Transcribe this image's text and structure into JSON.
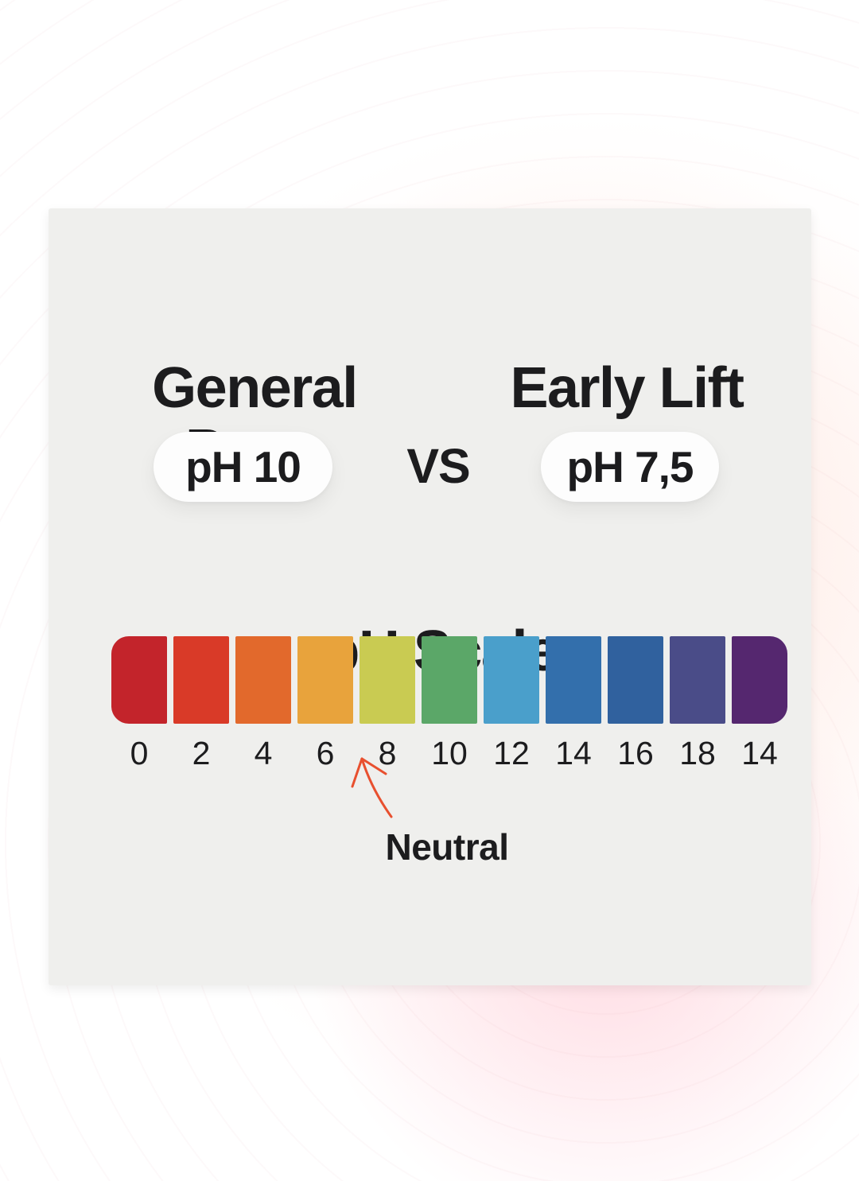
{
  "comparison": {
    "left_title": "General Perm",
    "left_ph": "pH 10",
    "vs_label": "VS",
    "right_title": "Early Lift",
    "right_ph": "pH 7,5"
  },
  "ph_scale": {
    "title": "pH Scale",
    "blocks": [
      {
        "label": "0",
        "color": "#c3242b"
      },
      {
        "label": "2",
        "color": "#d93a28"
      },
      {
        "label": "4",
        "color": "#e2692c"
      },
      {
        "label": "6",
        "color": "#e8a33c"
      },
      {
        "label": "8",
        "color": "#c9cb52"
      },
      {
        "label": "10",
        "color": "#5ba768"
      },
      {
        "label": "12",
        "color": "#4a9fcb"
      },
      {
        "label": "14",
        "color": "#336fac"
      },
      {
        "label": "16",
        "color": "#30619e"
      },
      {
        "label": "18",
        "color": "#4a4c88"
      },
      {
        "label": "14",
        "color": "#55276f"
      }
    ],
    "annotation": {
      "label": "Neutral",
      "arrow_color": "#e8502f"
    }
  }
}
